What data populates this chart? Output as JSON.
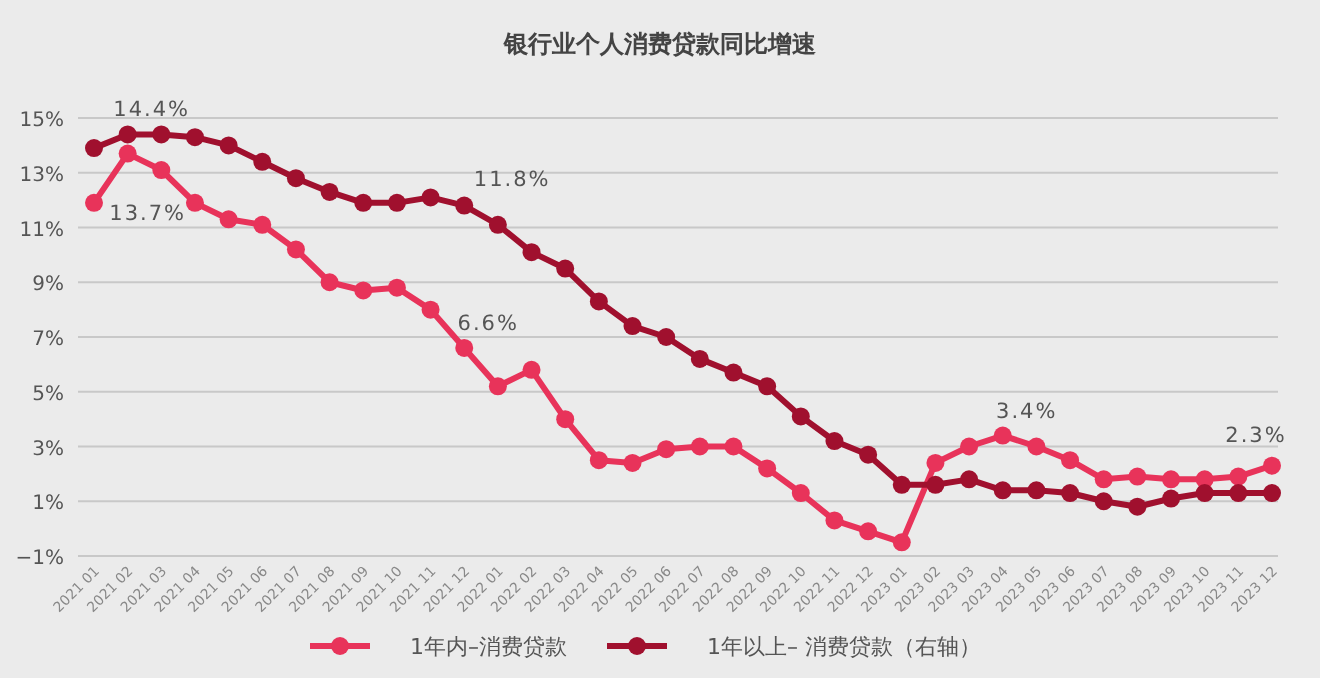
{
  "chart_data": {
    "type": "line",
    "title": "银行业个人消费贷款同比增速",
    "categories": [
      "2021 01",
      "2021 02",
      "2021 03",
      "2021 04",
      "2021 05",
      "2021 06",
      "2021 07",
      "2021 08",
      "2021 09",
      "2021 10",
      "2021 11",
      "2021 12",
      "2022 01",
      "2022 02",
      "2022 03",
      "2022 04",
      "2022 05",
      "2022 06",
      "2022 07",
      "2022 08",
      "2022 09",
      "2022 10",
      "2022 11",
      "2022 12",
      "2023 01",
      "2023 02",
      "2023 03",
      "2023 04",
      "2023 05",
      "2023 06",
      "2023 07",
      "2023 08",
      "2023 09",
      "2023 10",
      "2023 11",
      "2023 12"
    ],
    "series": [
      {
        "name": "1年内–消费贷款",
        "color": "#e8335a",
        "values": [
          11.9,
          13.7,
          13.1,
          11.9,
          11.3,
          11.1,
          10.2,
          9.0,
          8.7,
          8.8,
          8.0,
          6.6,
          5.2,
          5.8,
          4.0,
          2.5,
          2.4,
          2.9,
          3.0,
          3.0,
          2.2,
          1.3,
          0.3,
          -0.1,
          -0.5,
          2.4,
          3.0,
          3.4,
          3.0,
          2.5,
          1.8,
          1.9,
          1.8,
          1.8,
          1.9,
          2.3
        ]
      },
      {
        "name": "1年以上– 消费贷款（右轴）",
        "color": "#a0102e",
        "values": [
          13.9,
          14.4,
          14.4,
          14.3,
          14.0,
          13.4,
          12.8,
          12.3,
          11.9,
          11.9,
          12.1,
          11.8,
          11.1,
          10.1,
          9.5,
          8.3,
          7.4,
          7.0,
          6.2,
          5.7,
          5.2,
          4.1,
          3.2,
          2.7,
          1.6,
          1.6,
          1.8,
          1.4,
          1.4,
          1.3,
          1.0,
          0.8,
          1.1,
          1.3,
          1.3,
          1.3
        ]
      }
    ],
    "ylim": [
      -1,
      15
    ],
    "yticks": [
      {
        "value": -1,
        "label": "−1%"
      },
      {
        "value": 1,
        "label": "1%"
      },
      {
        "value": 3,
        "label": "3%"
      },
      {
        "value": 5,
        "label": "5%"
      },
      {
        "value": 7,
        "label": "7%"
      },
      {
        "value": 9,
        "label": "9%"
      },
      {
        "value": 11,
        "label": "11%"
      },
      {
        "value": 13,
        "label": "13%"
      },
      {
        "value": 15,
        "label": "15%"
      }
    ],
    "grid": "y",
    "legend": "bottom",
    "marker": "circle",
    "annotations": [
      {
        "text": "14.4%",
        "x": "2021 02",
        "y": 14.4
      },
      {
        "text": "13.7%",
        "x": "2021 02",
        "y": 13.7
      },
      {
        "text": "6.6%",
        "x": "2021 12",
        "y": 6.6
      },
      {
        "text": "11.8%",
        "x": "2021 12",
        "y": 11.8
      },
      {
        "text": "3.4%",
        "x": "2023 04",
        "y": 3.4
      },
      {
        "text": "2.3%",
        "x": "2023 12",
        "y": 2.3
      }
    ]
  }
}
